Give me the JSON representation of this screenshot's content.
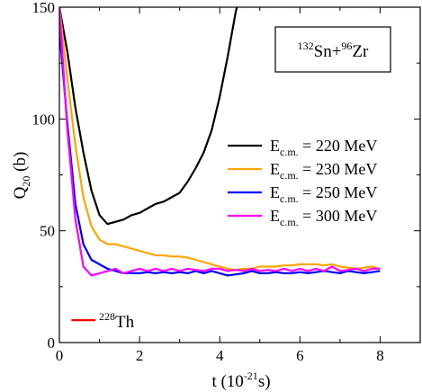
{
  "chart_data": {
    "type": "line",
    "xlabel": {
      "pre": "t (10",
      "sup": "-21",
      "post": "s)"
    },
    "ylabel": {
      "main": "Q",
      "sub": "20",
      "post": " (b)"
    },
    "xlim": [
      0,
      9
    ],
    "ylim": [
      0,
      150
    ],
    "x_ticks": [
      "0",
      "2",
      "4",
      "6",
      "8"
    ],
    "y_ticks": [
      "0",
      "50",
      "100",
      "150"
    ],
    "grid": false,
    "legend_position": "center-right",
    "annotation": {
      "sup1": "132",
      "el1": "Sn+",
      "sup2": "96",
      "el2": "Zr"
    },
    "reference": {
      "sup": "228",
      "label": "Th",
      "value": 10,
      "x_range": [
        0.3,
        0.9
      ],
      "color": "#ff0000"
    },
    "series": [
      {
        "label": {
          "main": "E",
          "sub": "c.m.",
          "post": " = 220 MeV"
        },
        "color": "#000000",
        "points": [
          [
            0.0,
            150
          ],
          [
            0.2,
            130
          ],
          [
            0.4,
            105
          ],
          [
            0.6,
            85
          ],
          [
            0.8,
            68
          ],
          [
            1.0,
            57
          ],
          [
            1.2,
            53
          ],
          [
            1.4,
            54
          ],
          [
            1.6,
            55
          ],
          [
            1.8,
            57
          ],
          [
            2.0,
            58
          ],
          [
            2.2,
            60
          ],
          [
            2.4,
            62
          ],
          [
            2.6,
            63
          ],
          [
            2.8,
            65
          ],
          [
            3.0,
            67
          ],
          [
            3.2,
            72
          ],
          [
            3.4,
            78
          ],
          [
            3.6,
            85
          ],
          [
            3.8,
            95
          ],
          [
            4.0,
            110
          ],
          [
            4.2,
            128
          ],
          [
            4.4,
            148
          ],
          [
            4.5,
            155
          ]
        ]
      },
      {
        "label": {
          "main": "E",
          "sub": "c.m.",
          "post": " = 230 MeV"
        },
        "color": "#ffa500",
        "points": [
          [
            0.0,
            150
          ],
          [
            0.2,
            118
          ],
          [
            0.4,
            88
          ],
          [
            0.6,
            65
          ],
          [
            0.8,
            52
          ],
          [
            1.0,
            46
          ],
          [
            1.2,
            44
          ],
          [
            1.4,
            44
          ],
          [
            1.6,
            43
          ],
          [
            1.8,
            42
          ],
          [
            2.0,
            41
          ],
          [
            2.2,
            40
          ],
          [
            2.4,
            39
          ],
          [
            2.6,
            39
          ],
          [
            2.8,
            38.5
          ],
          [
            3.0,
            38.5
          ],
          [
            3.2,
            38
          ],
          [
            3.4,
            37
          ],
          [
            3.6,
            36
          ],
          [
            3.8,
            35
          ],
          [
            4.0,
            34
          ],
          [
            4.2,
            33
          ],
          [
            4.4,
            32.5
          ],
          [
            4.6,
            33
          ],
          [
            4.8,
            33
          ],
          [
            5.0,
            34
          ],
          [
            5.2,
            34
          ],
          [
            5.4,
            34
          ],
          [
            5.6,
            34.5
          ],
          [
            5.8,
            34.5
          ],
          [
            6.0,
            35
          ],
          [
            6.2,
            35
          ],
          [
            6.4,
            35
          ],
          [
            6.6,
            34.5
          ],
          [
            6.8,
            35
          ],
          [
            7.0,
            34
          ],
          [
            7.2,
            33.5
          ],
          [
            7.4,
            33
          ],
          [
            7.6,
            33.5
          ],
          [
            7.8,
            34
          ],
          [
            8.0,
            33
          ]
        ]
      },
      {
        "label": {
          "main": "E",
          "sub": "c.m.",
          "post": " = 250 MeV"
        },
        "color": "#0000ff",
        "points": [
          [
            0.0,
            140
          ],
          [
            0.2,
            98
          ],
          [
            0.4,
            62
          ],
          [
            0.6,
            44
          ],
          [
            0.8,
            37
          ],
          [
            1.0,
            35
          ],
          [
            1.2,
            33
          ],
          [
            1.4,
            32
          ],
          [
            1.6,
            31
          ],
          [
            1.8,
            31
          ],
          [
            2.0,
            31
          ],
          [
            2.2,
            31.5
          ],
          [
            2.4,
            31
          ],
          [
            2.6,
            31.5
          ],
          [
            2.8,
            31
          ],
          [
            3.0,
            31.5
          ],
          [
            3.2,
            31
          ],
          [
            3.4,
            32
          ],
          [
            3.6,
            31
          ],
          [
            3.8,
            32
          ],
          [
            4.0,
            31
          ],
          [
            4.2,
            30
          ],
          [
            4.4,
            30.5
          ],
          [
            4.6,
            31
          ],
          [
            4.8,
            32
          ],
          [
            5.0,
            31
          ],
          [
            5.2,
            31
          ],
          [
            5.4,
            31.5
          ],
          [
            5.6,
            31
          ],
          [
            5.8,
            31
          ],
          [
            6.0,
            31.5
          ],
          [
            6.2,
            31
          ],
          [
            6.4,
            31.5
          ],
          [
            6.6,
            32
          ],
          [
            6.8,
            31.5
          ],
          [
            7.0,
            31
          ],
          [
            7.2,
            32
          ],
          [
            7.4,
            31.5
          ],
          [
            7.6,
            31
          ],
          [
            7.8,
            31.5
          ],
          [
            8.0,
            32
          ]
        ]
      },
      {
        "label": {
          "main": "E",
          "sub": "c.m.",
          "post": " = 300 MeV"
        },
        "color": "#ff00ff",
        "points": [
          [
            0.0,
            150
          ],
          [
            0.2,
            95
          ],
          [
            0.4,
            55
          ],
          [
            0.6,
            34
          ],
          [
            0.8,
            30
          ],
          [
            1.0,
            31
          ],
          [
            1.2,
            32
          ],
          [
            1.4,
            33
          ],
          [
            1.6,
            31
          ],
          [
            1.8,
            32
          ],
          [
            2.0,
            33
          ],
          [
            2.2,
            32
          ],
          [
            2.4,
            33
          ],
          [
            2.6,
            32
          ],
          [
            2.8,
            33
          ],
          [
            3.0,
            32
          ],
          [
            3.2,
            33
          ],
          [
            3.4,
            32.5
          ],
          [
            3.6,
            32
          ],
          [
            3.8,
            33
          ],
          [
            4.0,
            33
          ],
          [
            4.2,
            32
          ],
          [
            4.4,
            32.5
          ],
          [
            4.6,
            32
          ],
          [
            4.8,
            33
          ],
          [
            5.0,
            32
          ],
          [
            5.2,
            32.5
          ],
          [
            5.4,
            32
          ],
          [
            5.6,
            33
          ],
          [
            5.8,
            32
          ],
          [
            6.0,
            33
          ],
          [
            6.2,
            32
          ],
          [
            6.4,
            33
          ],
          [
            6.6,
            32
          ],
          [
            6.8,
            34
          ],
          [
            7.0,
            32
          ],
          [
            7.2,
            32.5
          ],
          [
            7.4,
            33
          ],
          [
            7.6,
            32
          ],
          [
            7.8,
            33
          ],
          [
            8.0,
            33
          ]
        ]
      }
    ]
  }
}
